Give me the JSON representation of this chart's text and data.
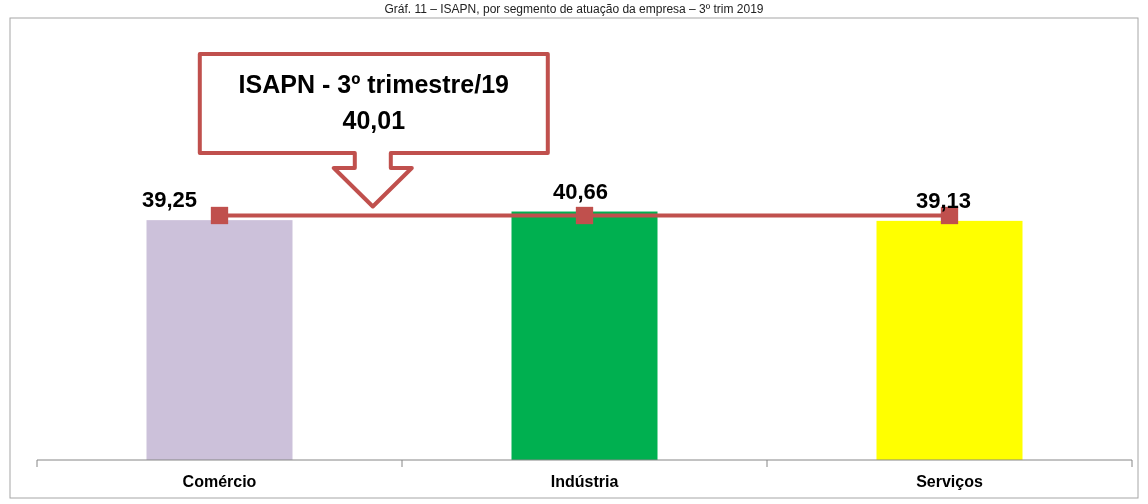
{
  "chart_data": {
    "type": "bar",
    "title": "Gráf. 11 – ISAPN, por segmento de atuação da empresa – 3º trim 2019",
    "categories": [
      "Comércio",
      "Indústria",
      "Serviços"
    ],
    "series": [
      {
        "values": [
          39.25,
          40.66,
          39.13
        ],
        "colors": [
          "#ccc1da",
          "#00b050",
          "#ffff00"
        ],
        "value_labels": [
          "39,25",
          "40,66",
          "39,13"
        ]
      },
      {
        "type": "line",
        "values": [
          40.01,
          40.01,
          40.01
        ],
        "color": "#c0504d",
        "marker": "square"
      }
    ],
    "annotations": [
      "ISAPN - 3º trimestre/19\n40,01"
    ],
    "ylim": [
      0,
      72
    ],
    "tick_labels": "x"
  }
}
